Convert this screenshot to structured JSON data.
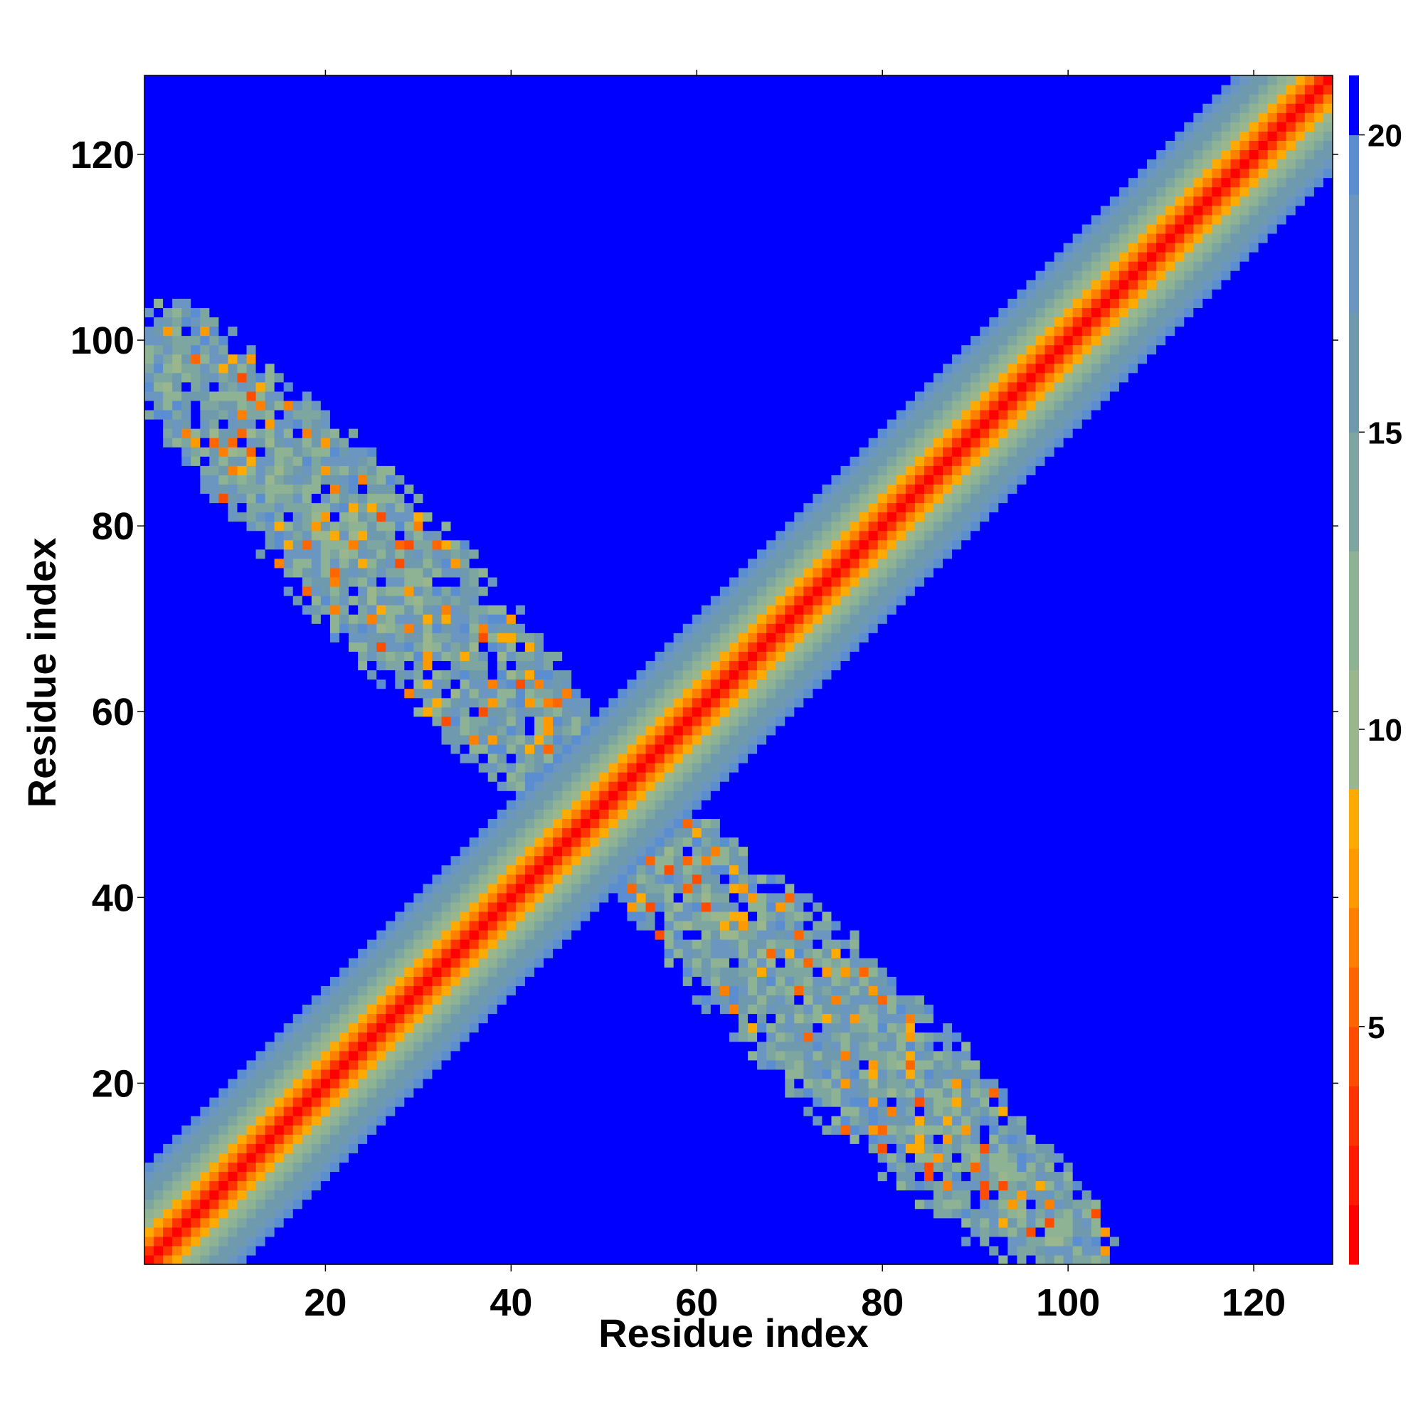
{
  "chart_data": {
    "type": "heatmap",
    "title": "",
    "xlabel": "Residue index",
    "ylabel": "Residue index",
    "n": 128,
    "xlim": [
      1,
      128
    ],
    "ylim": [
      1,
      128
    ],
    "x_ticks": [
      20,
      40,
      60,
      80,
      100,
      120
    ],
    "y_ticks": [
      20,
      40,
      60,
      80,
      100,
      120
    ],
    "colorbar": {
      "range": [
        1,
        21
      ],
      "ticks": [
        5,
        10,
        15,
        20
      ],
      "placement": "right",
      "levels": [
        {
          "min": 1,
          "max": 2,
          "color": "#ff0000"
        },
        {
          "min": 2,
          "max": 3,
          "color": "#ff1a00"
        },
        {
          "min": 3,
          "max": 4,
          "color": "#ff3300"
        },
        {
          "min": 4,
          "max": 5,
          "color": "#ff4d00"
        },
        {
          "min": 5,
          "max": 6,
          "color": "#ff6600"
        },
        {
          "min": 6,
          "max": 7,
          "color": "#ff8000"
        },
        {
          "min": 7,
          "max": 8,
          "color": "#ff9900"
        },
        {
          "min": 8,
          "max": 9,
          "color": "#ffaa00"
        },
        {
          "min": 9,
          "max": 11,
          "color": "#9ab68c"
        },
        {
          "min": 11,
          "max": 13,
          "color": "#8eb294"
        },
        {
          "min": 13,
          "max": 15,
          "color": "#7ea6a0"
        },
        {
          "min": 15,
          "max": 17,
          "color": "#6f9aae"
        },
        {
          "min": 17,
          "max": 19,
          "color": "#6a96c0"
        },
        {
          "min": 19,
          "max": 20,
          "color": "#5b8ed0"
        },
        {
          "min": 20,
          "max": 21,
          "color": "#0000ff"
        }
      ]
    },
    "background_value": 21,
    "main_diagonal": {
      "description_value_at_offset": [
        [
          0,
          1
        ],
        [
          1,
          3
        ],
        [
          2,
          6
        ],
        [
          3,
          8
        ],
        [
          4,
          10
        ],
        [
          5,
          12
        ],
        [
          6,
          13
        ],
        [
          7,
          15
        ],
        [
          8,
          16
        ],
        [
          9,
          18
        ],
        [
          10,
          19
        ]
      ]
    },
    "off_diagonal_contact": {
      "from": [
        3,
        99
      ],
      "to": [
        48,
        52
      ],
      "half_width": 8,
      "typical_value_range": [
        5,
        19
      ]
    },
    "grid": false,
    "legend": "none"
  }
}
